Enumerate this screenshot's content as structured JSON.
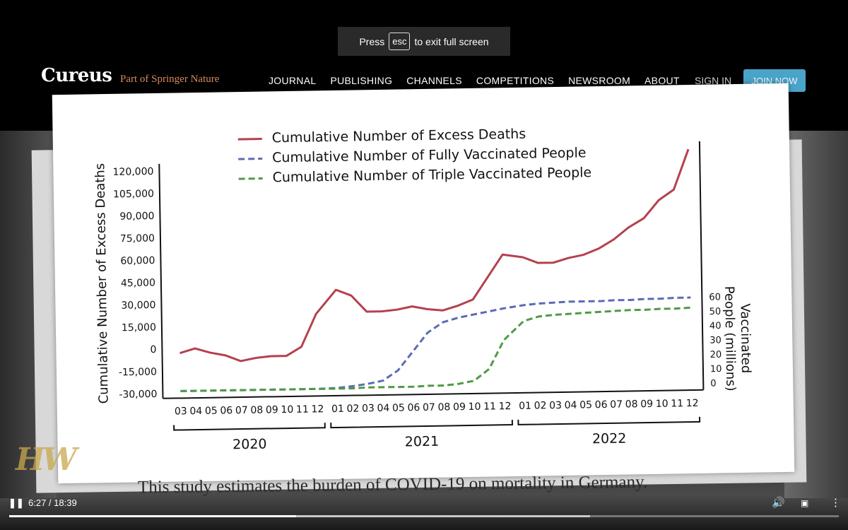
{
  "fullscreen_notice": {
    "prefix": "Press",
    "key": "esc",
    "suffix": "to exit full screen"
  },
  "site": {
    "logo": "Cureus",
    "logo_sub": "Part of Springer Nature",
    "nav": [
      "JOURNAL",
      "PUBLISHING",
      "CHANNELS",
      "COMPETITIONS",
      "NEWSROOM",
      "ABOUT"
    ],
    "sign_in": "SIGN IN",
    "join": "JOIN NOW"
  },
  "caption": "This study estimates the burden of COVID-19 on mortality in Germany.",
  "watermark": "HW",
  "player": {
    "time": "6:27 / 18:39",
    "progress": 0.346,
    "buffered": 0.7,
    "icons": [
      "pause-icon",
      "volume-icon",
      "exit-fullscreen-icon",
      "more-vert-icon"
    ]
  },
  "chart_data": {
    "type": "line",
    "ylabel_left": "Cumulative Number of Excess Deaths",
    "ylabel_right": "Vaccinated People (millions)",
    "left_ticks": [
      "120,000",
      "105,000",
      "90,000",
      "75,000",
      "60,000",
      "45,000",
      "30,000",
      "15,000",
      "0",
      "-15,000",
      "-30,000"
    ],
    "right_ticks": [
      "60",
      "50",
      "40",
      "30",
      "20",
      "10",
      "0"
    ],
    "ylim_left": [
      -30000,
      120000
    ],
    "ylim_right": [
      0,
      60
    ],
    "month_labels": [
      "03",
      "04",
      "05",
      "06",
      "07",
      "08",
      "09",
      "10",
      "11",
      "12",
      "01",
      "02",
      "03",
      "04",
      "05",
      "06",
      "07",
      "08",
      "09",
      "10",
      "11",
      "12",
      "01",
      "02",
      "03",
      "04",
      "05",
      "06",
      "07",
      "08",
      "09",
      "10",
      "11",
      "12"
    ],
    "year_labels": [
      "2020",
      "2021",
      "2022"
    ],
    "legend": [
      "Cumulative Number of Excess Deaths",
      "Cumulative Number of Fully Vaccinated People",
      "Cumulative Number of Triple Vaccinated People"
    ],
    "series": [
      {
        "name": "Cumulative Number of Excess Deaths",
        "axis": "left",
        "color": "#b5404f",
        "style": "solid",
        "values": [
          -3000,
          0,
          -3000,
          -5000,
          -9000,
          -7000,
          -6000,
          -6000,
          0,
          22000,
          38000,
          34000,
          23000,
          23000,
          24000,
          26000,
          24000,
          23000,
          26000,
          30000,
          45000,
          60000,
          58000,
          54000,
          54000,
          57000,
          59000,
          63000,
          69000,
          77000,
          83000,
          95000,
          102000,
          129000
        ]
      },
      {
        "name": "Cumulative Number of Fully Vaccinated People",
        "axis": "right",
        "color": "#5b6bb5",
        "style": "dashed",
        "values": [
          0,
          0,
          0,
          0,
          0,
          0,
          0,
          0,
          0,
          0,
          0.5,
          1.5,
          3,
          5,
          12,
          25,
          38,
          45,
          48,
          50,
          52,
          54,
          56,
          57,
          57.5,
          58,
          58,
          58,
          58.5,
          58.5,
          59,
          59,
          59.5,
          59.5
        ]
      },
      {
        "name": "Cumulative Number of Triple Vaccinated People",
        "axis": "right",
        "color": "#4f9a45",
        "style": "dashed",
        "values": [
          0,
          0,
          0,
          0,
          0,
          0,
          0,
          0,
          0,
          0,
          0,
          0,
          0.5,
          0.5,
          0.5,
          0.5,
          1,
          1,
          2,
          4,
          12,
          32,
          45,
          48,
          49,
          49.5,
          50,
          50.5,
          51,
          51.5,
          51.5,
          52,
          52,
          52.5
        ]
      }
    ]
  }
}
